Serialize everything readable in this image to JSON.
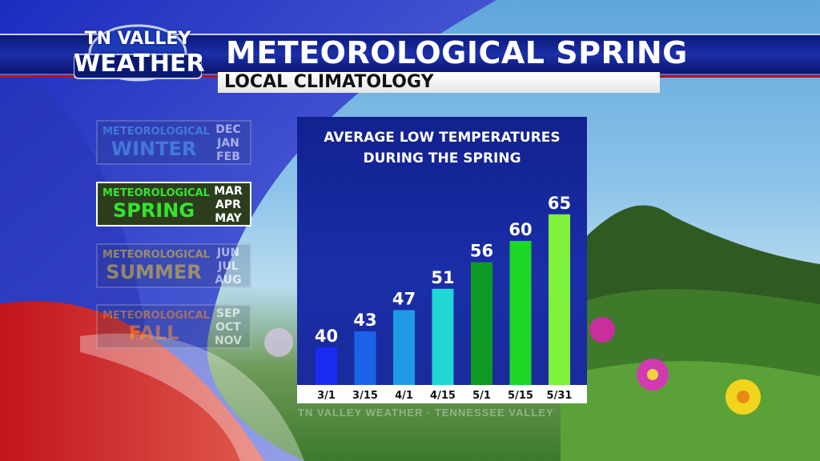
{
  "header": {
    "title": "METEOROLOGICAL SPRING",
    "subtitle": "LOCAL CLIMATOLOGY"
  },
  "logo": {
    "line1": "TN VALLEY",
    "line2": "WEATHER"
  },
  "seasons": [
    {
      "prefix": "METEOROLOGICAL",
      "name": "WINTER",
      "months": [
        "DEC",
        "JAN",
        "FEB"
      ],
      "color": "#4fa3e6",
      "active": false
    },
    {
      "prefix": "METEOROLOGICAL",
      "name": "SPRING",
      "months": [
        "MAR",
        "APR",
        "MAY"
      ],
      "color": "#35e52c",
      "active": true
    },
    {
      "prefix": "METEOROLOGICAL",
      "name": "SUMMER",
      "months": [
        "JUN",
        "JUL",
        "AUG"
      ],
      "color": "#e3c21c",
      "active": false
    },
    {
      "prefix": "METEOROLOGICAL",
      "name": "FALL",
      "months": [
        "SEP",
        "OCT",
        "NOV"
      ],
      "color": "#f08a1e",
      "active": false
    }
  ],
  "watermark": "TN VALLEY WEATHER · TENNESSEE VALLEY",
  "chart_data": {
    "type": "bar",
    "title_line1": "AVERAGE LOW TEMPERATURES",
    "title_line2": "DURING THE SPRING",
    "categories": [
      "3/1",
      "3/15",
      "4/1",
      "4/15",
      "5/1",
      "5/15",
      "5/31"
    ],
    "values": [
      40,
      43,
      47,
      51,
      56,
      60,
      65
    ],
    "bar_colors": [
      "#1a2cf2",
      "#1a63e8",
      "#1f9be6",
      "#22d6d4",
      "#0e9a22",
      "#1ed628",
      "#7ff23c"
    ],
    "data_labels": true,
    "grid": false,
    "legend": "none"
  }
}
